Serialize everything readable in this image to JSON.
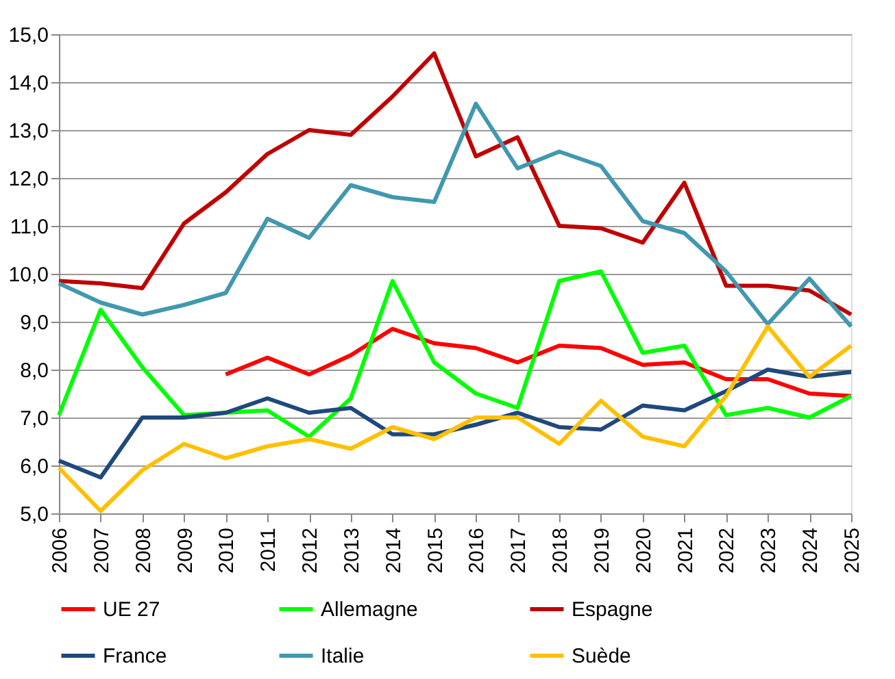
{
  "chart_data": {
    "type": "line",
    "categories": [
      "2006",
      "2007",
      "2008",
      "2009",
      "2010",
      "2011",
      "2012",
      "2013",
      "2014",
      "2015",
      "2016",
      "2017",
      "2018",
      "2019",
      "2020",
      "2021",
      "2022",
      "2023",
      "2024",
      "2025"
    ],
    "series": [
      {
        "name": "UE 27",
        "color": "#ff0000",
        "values": [
          null,
          null,
          null,
          null,
          7.9,
          8.25,
          7.9,
          8.3,
          8.85,
          8.55,
          8.45,
          8.15,
          8.5,
          8.45,
          8.1,
          8.15,
          7.8,
          7.8,
          7.5,
          7.45
        ]
      },
      {
        "name": "Allemagne",
        "color": "#00ff00",
        "values": [
          7.05,
          9.25,
          8.05,
          7.05,
          7.1,
          7.15,
          6.6,
          7.4,
          9.85,
          8.15,
          7.5,
          7.2,
          9.85,
          10.05,
          8.35,
          8.5,
          7.05,
          7.2,
          7.0,
          7.45
        ]
      },
      {
        "name": "Espagne",
        "color": "#c00000",
        "values": [
          9.85,
          9.8,
          9.7,
          11.05,
          11.7,
          12.5,
          13.0,
          12.9,
          13.7,
          14.6,
          12.45,
          12.85,
          11.0,
          10.95,
          10.65,
          11.9,
          9.75,
          9.75,
          9.65,
          9.15
        ]
      },
      {
        "name": "France",
        "color": "#1f497d",
        "values": [
          6.1,
          5.75,
          7.0,
          7.0,
          7.1,
          7.4,
          7.1,
          7.2,
          6.65,
          6.65,
          6.85,
          7.1,
          6.8,
          6.75,
          7.25,
          7.15,
          7.55,
          8.0,
          7.85,
          7.95
        ]
      },
      {
        "name": "Italie",
        "color": "#4198af",
        "values": [
          9.8,
          9.4,
          9.15,
          9.35,
          9.6,
          11.15,
          10.75,
          11.85,
          11.6,
          11.5,
          13.55,
          12.2,
          12.55,
          12.25,
          11.1,
          10.85,
          10.05,
          8.95,
          9.9,
          8.9
        ]
      },
      {
        "name": "Suède",
        "color": "#ffc000",
        "values": [
          5.95,
          5.05,
          5.9,
          6.45,
          6.15,
          6.4,
          6.55,
          6.35,
          6.8,
          6.55,
          7.0,
          7.0,
          6.45,
          7.35,
          6.6,
          6.4,
          7.45,
          8.9,
          7.85,
          8.5
        ]
      }
    ],
    "ylim": [
      5,
      15
    ],
    "yticks": [
      {
        "value": 5,
        "label": "5,0"
      },
      {
        "value": 6,
        "label": "6,0"
      },
      {
        "value": 7,
        "label": "7,0"
      },
      {
        "value": 8,
        "label": "8,0"
      },
      {
        "value": 9,
        "label": "9,0"
      },
      {
        "value": 10,
        "label": "10,0"
      },
      {
        "value": 11,
        "label": "11,0"
      },
      {
        "value": 12,
        "label": "12,0"
      },
      {
        "value": 13,
        "label": "13,0"
      },
      {
        "value": 14,
        "label": "14,0"
      },
      {
        "value": 15,
        "label": "15,0"
      }
    ],
    "grid": "y",
    "legend": "bottom",
    "marker": "none",
    "line_style": "solid"
  }
}
